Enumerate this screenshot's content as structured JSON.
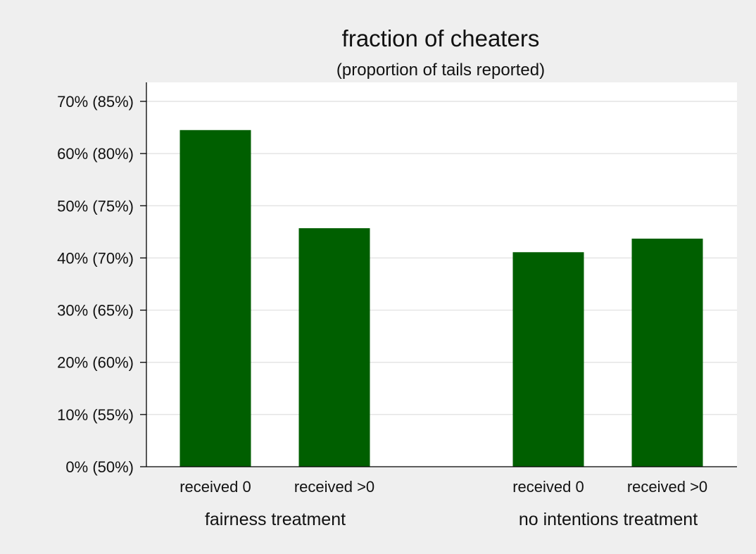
{
  "chart_data": {
    "type": "bar",
    "title": "fraction of cheaters",
    "subtitle": "(proportion of tails reported)",
    "xlabel": "",
    "ylabel": "",
    "ylim": [
      0,
      70
    ],
    "yticks": [
      {
        "value": 0,
        "label": "0% (50%)"
      },
      {
        "value": 10,
        "label": "10% (55%)"
      },
      {
        "value": 20,
        "label": "20% (60%)"
      },
      {
        "value": 30,
        "label": "30% (65%)"
      },
      {
        "value": 40,
        "label": "40% (70%)"
      },
      {
        "value": 50,
        "label": "50% (75%)"
      },
      {
        "value": 60,
        "label": "60% (80%)"
      },
      {
        "value": 70,
        "label": "70% (85%)"
      }
    ],
    "grid": true,
    "groups": [
      {
        "label": "fairness treatment",
        "bars": [
          {
            "label": "received  0",
            "value": 64.5
          },
          {
            "label": "received >0",
            "value": 45.7
          }
        ]
      },
      {
        "label": "no intentions treatment",
        "bars": [
          {
            "label": "received  0",
            "value": 41.1
          },
          {
            "label": "received >0",
            "value": 43.7
          }
        ]
      }
    ],
    "bar_color": "#005f00",
    "background_color": "#efefef",
    "plot_background_color": "#ffffff",
    "grid_color": "#e3e3e3"
  }
}
